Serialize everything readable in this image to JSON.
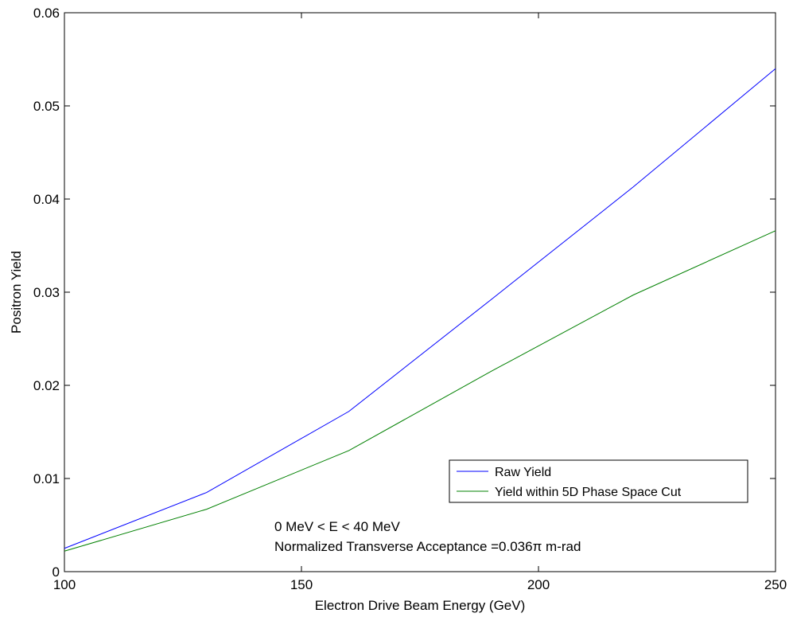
{
  "chart_data": {
    "type": "line",
    "title": "",
    "xlabel": "Electron Drive Beam Energy (GeV)",
    "ylabel": "Positron Yield",
    "xlim": [
      100,
      250
    ],
    "ylim": [
      0,
      0.06
    ],
    "xticks": [
      100,
      150,
      200,
      250
    ],
    "yticks": [
      0,
      0.01,
      0.02,
      0.03,
      0.04,
      0.05,
      0.06
    ],
    "xtick_labels": [
      "100",
      "150",
      "200",
      "250"
    ],
    "ytick_labels": [
      "0",
      "0.01",
      "0.02",
      "0.03",
      "0.04",
      "0.05",
      "0.06"
    ],
    "grid": false,
    "legend_position": "lower-right",
    "series": [
      {
        "name": "Raw Yield",
        "color": "#0000ff",
        "x": [
          100,
          130,
          160,
          190,
          220,
          250
        ],
        "y": [
          0.0025,
          0.0085,
          0.0172,
          0.0292,
          0.0413,
          0.054
        ]
      },
      {
        "name": "Yield within 5D Phase Space Cut",
        "color": "#008000",
        "x": [
          100,
          130,
          160,
          190,
          220,
          250
        ],
        "y": [
          0.0022,
          0.0067,
          0.013,
          0.0215,
          0.0297,
          0.0366
        ]
      }
    ],
    "annotations": [
      "0 MeV < E < 40 MeV",
      "Normalized Transverse Acceptance =0.036π m-rad"
    ]
  }
}
